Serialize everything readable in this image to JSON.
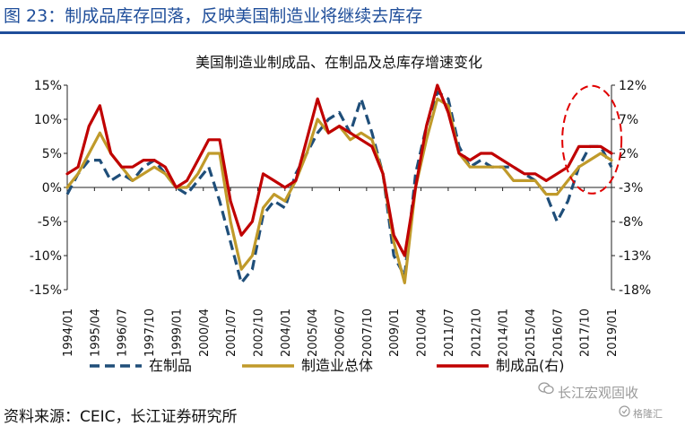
{
  "header": {
    "figure_title": "图 23：制成品库存回落，反映美国制造业将继续去库存"
  },
  "footer": {
    "source": "资料来源：CEIC，长江证券研究所",
    "watermark_main": "长江宏观固收",
    "watermark_sub": "格隆汇"
  },
  "chart_data": {
    "type": "line",
    "title": "美国制造业制成品、在制品及总库存增速变化",
    "left_axis": {
      "ylim": [
        -15,
        15
      ],
      "ticks": [
        15,
        10,
        5,
        0,
        -5,
        -10,
        -15
      ],
      "tick_labels": [
        "15%",
        "10%",
        "5%",
        "0%",
        "-5%",
        "-10%",
        "-15%"
      ]
    },
    "right_axis": {
      "ylim": [
        -18,
        12
      ],
      "ticks": [
        12,
        7,
        2,
        -3,
        -8,
        -13,
        -18
      ],
      "tick_labels": [
        "12%",
        "7%",
        "2%",
        "-3%",
        "-8%",
        "-13%",
        "-18%"
      ]
    },
    "x_tick_labels": [
      "1994/01",
      "1995/04",
      "1996/07",
      "1997/10",
      "1999/01",
      "2000/04",
      "2001/07",
      "2002/10",
      "2004/01",
      "2005/04",
      "2006/07",
      "2007/10",
      "2009/01",
      "2010/04",
      "2011/07",
      "2012/10",
      "2014/01",
      "2015/04",
      "2016/07",
      "2017/10",
      "2019/01"
    ],
    "x": [
      1994.0,
      1994.5,
      1995.0,
      1995.5,
      1996.0,
      1996.5,
      1997.0,
      1997.5,
      1998.0,
      1998.5,
      1999.0,
      1999.5,
      2000.0,
      2000.5,
      2001.0,
      2001.5,
      2002.0,
      2002.5,
      2003.0,
      2003.5,
      2004.0,
      2004.5,
      2005.0,
      2005.5,
      2006.0,
      2006.5,
      2007.0,
      2007.5,
      2008.0,
      2008.5,
      2009.0,
      2009.5,
      2010.0,
      2010.5,
      2011.0,
      2011.5,
      2012.0,
      2012.5,
      2013.0,
      2013.5,
      2014.0,
      2014.5,
      2015.0,
      2015.5,
      2016.0,
      2016.5,
      2017.0,
      2017.5,
      2018.0,
      2018.5,
      2019.0
    ],
    "series": [
      {
        "name": "在制品",
        "axis": "left",
        "color": "#1f4e79",
        "dash": true,
        "values": [
          -1,
          2,
          4,
          4,
          1,
          2,
          1,
          3,
          4,
          2,
          0,
          -1,
          1,
          3,
          -2,
          -8,
          -14,
          -12,
          -4,
          -2,
          -3,
          2,
          5,
          8,
          10,
          11,
          8,
          13,
          8,
          2,
          -10,
          -13,
          2,
          9,
          14,
          13,
          6,
          3,
          4,
          3,
          3,
          3,
          2,
          1,
          -1,
          -5,
          -2,
          3,
          6,
          6,
          3
        ]
      },
      {
        "name": "制造业总体",
        "axis": "left",
        "color": "#c09a2a",
        "dash": false,
        "values": [
          0,
          2,
          5,
          8,
          5,
          3,
          1,
          2,
          3,
          2,
          0,
          0,
          2,
          5,
          5,
          -5,
          -12,
          -10,
          -3,
          -1,
          -2,
          1,
          5,
          10,
          8,
          9,
          7,
          8,
          7,
          2,
          -8,
          -14,
          0,
          7,
          13,
          12,
          5,
          3,
          3,
          3,
          3,
          1,
          1,
          1,
          -1,
          -1,
          1,
          3,
          4,
          5,
          4
        ]
      },
      {
        "name": "制成品(右)",
        "axis": "right",
        "color": "#c00000",
        "dash": false,
        "values": [
          -1,
          0,
          6,
          9,
          2,
          0,
          0,
          1,
          1,
          0,
          -3,
          -2,
          1,
          4,
          4,
          -5,
          -10,
          -8,
          -1,
          -2,
          -3,
          -2,
          4,
          10,
          5,
          6,
          5,
          4,
          3,
          -1,
          -10,
          -13,
          -3,
          6,
          12,
          8,
          2,
          1,
          2,
          2,
          1,
          0,
          -1,
          -1,
          -2,
          -1,
          0,
          3,
          3,
          3,
          2
        ]
      }
    ],
    "annotations": [
      {
        "type": "dashed-ellipse",
        "color": "#e00000",
        "x": 2018.1,
        "y_right": 4,
        "note": "highlight of recent decline"
      }
    ],
    "legend": {
      "position": "bottom",
      "entries": [
        "在制品",
        "制造业总体",
        "制成品(右)"
      ]
    },
    "grid": false
  }
}
